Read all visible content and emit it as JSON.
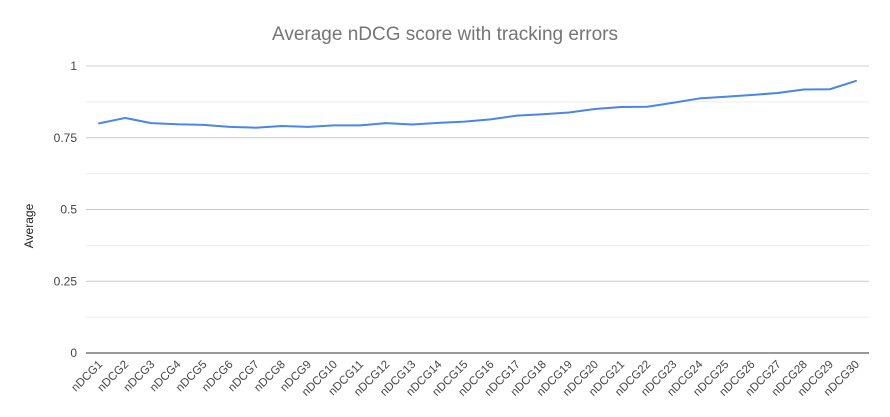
{
  "chart_data": {
    "type": "line",
    "title": "Average nDCG score with tracking errors",
    "xlabel": "",
    "ylabel": "Average",
    "ylim": [
      0,
      1
    ],
    "yticks": [
      0,
      0.25,
      0.5,
      0.75,
      1
    ],
    "ytick_labels": [
      "0",
      "0.25",
      "0.5",
      "0.75",
      "1"
    ],
    "grid": true,
    "legend": "none",
    "categories": [
      "nDCG1",
      "nDCG2",
      "nDCG3",
      "nDCG4",
      "nDCG5",
      "nDCG6",
      "nDCG7",
      "nDCG8",
      "nDCG9",
      "nDCG10",
      "nDCG11",
      "nDCG12",
      "nDCG13",
      "nDCG14",
      "nDCG15",
      "nDCG16",
      "nDCG17",
      "nDCG18",
      "nDCG19",
      "nDCG20",
      "nDCG21",
      "nDCG22",
      "nDCG23",
      "nDCG24",
      "nDCG25",
      "nDCG26",
      "nDCG27",
      "nDCG28",
      "nDCG29",
      "nDCG30"
    ],
    "series": [
      {
        "color": "#4a86e8",
        "values": [
          0.8,
          0.819,
          0.801,
          0.797,
          0.795,
          0.788,
          0.785,
          0.791,
          0.788,
          0.793,
          0.793,
          0.801,
          0.796,
          0.802,
          0.806,
          0.814,
          0.827,
          0.832,
          0.838,
          0.85,
          0.857,
          0.858,
          0.872,
          0.887,
          0.893,
          0.899,
          0.906,
          0.918,
          0.919,
          0.948
        ]
      }
    ]
  }
}
